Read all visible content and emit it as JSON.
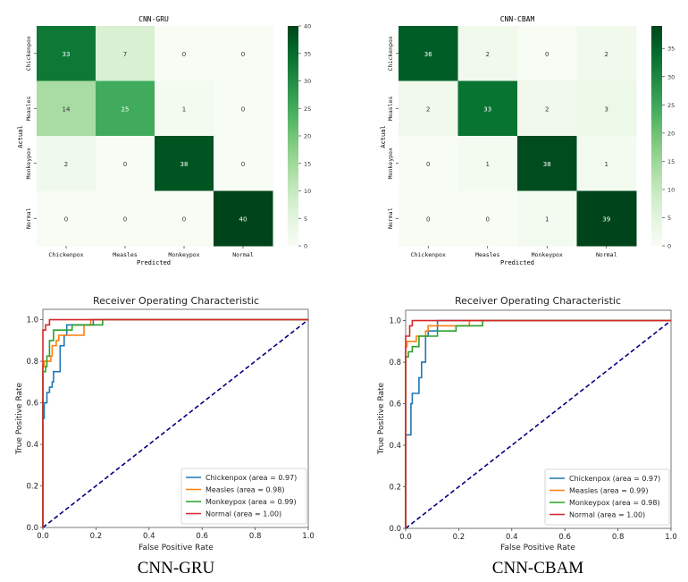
{
  "chart_data": [
    {
      "type": "heatmap",
      "id": "cm-gru",
      "title": "CNN-GRU",
      "xlabel": "Predicted",
      "ylabel": "Actual",
      "x_categories": [
        "Chickenpox",
        "Measles",
        "Monkeypox",
        "Normal"
      ],
      "y_categories": [
        "Chickenpox",
        "Measles",
        "Monkeypox",
        "Normal"
      ],
      "values": [
        [
          33,
          7,
          0,
          0
        ],
        [
          14,
          25,
          1,
          0
        ],
        [
          2,
          0,
          38,
          0
        ],
        [
          0,
          0,
          0,
          40
        ]
      ],
      "colormap": "Greens",
      "color_range": [
        0,
        40
      ],
      "colorbar_ticks": [
        0,
        5,
        10,
        15,
        20,
        25,
        30,
        35,
        40
      ]
    },
    {
      "type": "heatmap",
      "id": "cm-cbam",
      "title": "CNN-CBAM",
      "xlabel": "Predicted",
      "ylabel": "Actual",
      "x_categories": [
        "Chickenpox",
        "Measles",
        "Monkeypox",
        "Normal"
      ],
      "y_categories": [
        "Chickenpox",
        "Measles",
        "Monkeypox",
        "Normal"
      ],
      "values": [
        [
          36,
          2,
          0,
          2
        ],
        [
          2,
          33,
          2,
          3
        ],
        [
          0,
          1,
          38,
          1
        ],
        [
          0,
          0,
          1,
          39
        ]
      ],
      "colormap": "Greens",
      "color_range": [
        0,
        39
      ],
      "colorbar_ticks": [
        0,
        5,
        10,
        15,
        20,
        25,
        30,
        35
      ]
    },
    {
      "type": "line",
      "id": "roc-gru",
      "title": "Receiver Operating Characteristic",
      "caption": "CNN-GRU",
      "xlabel": "False Positive Rate",
      "ylabel": "True Positive Rate",
      "xlim": [
        0,
        1
      ],
      "ylim": [
        0,
        1.05
      ],
      "xticks": [
        "0.0",
        "0.2",
        "0.4",
        "0.6",
        "0.8",
        "1.0"
      ],
      "yticks": [
        "0.0",
        "0.2",
        "0.4",
        "0.6",
        "0.8",
        "1.0"
      ],
      "legend_position": "lower-right",
      "series": [
        {
          "name": "Chickenpox (area = 0.97)",
          "color": "#1f77b4",
          "points": [
            [
              0,
              0
            ],
            [
              0,
              0.525
            ],
            [
              0.005,
              0.525
            ],
            [
              0.005,
              0.6
            ],
            [
              0.015,
              0.6
            ],
            [
              0.015,
              0.65
            ],
            [
              0.025,
              0.65
            ],
            [
              0.025,
              0.675
            ],
            [
              0.035,
              0.675
            ],
            [
              0.035,
              0.7
            ],
            [
              0.04,
              0.7
            ],
            [
              0.04,
              0.75
            ],
            [
              0.065,
              0.75
            ],
            [
              0.065,
              0.875
            ],
            [
              0.08,
              0.875
            ],
            [
              0.08,
              0.925
            ],
            [
              0.09,
              0.925
            ],
            [
              0.09,
              0.975
            ],
            [
              0.19,
              0.975
            ],
            [
              0.19,
              1.0
            ],
            [
              1,
              1.0
            ]
          ]
        },
        {
          "name": "Measles (area = 0.98)",
          "color": "#ff7f0e",
          "points": [
            [
              0,
              0
            ],
            [
              0,
              0.775
            ],
            [
              0.005,
              0.775
            ],
            [
              0.005,
              0.8
            ],
            [
              0.03,
              0.8
            ],
            [
              0.03,
              0.825
            ],
            [
              0.035,
              0.825
            ],
            [
              0.035,
              0.875
            ],
            [
              0.05,
              0.875
            ],
            [
              0.05,
              0.9
            ],
            [
              0.06,
              0.9
            ],
            [
              0.06,
              0.925
            ],
            [
              0.155,
              0.925
            ],
            [
              0.155,
              0.975
            ],
            [
              0.18,
              0.975
            ],
            [
              0.18,
              1.0
            ],
            [
              1,
              1.0
            ]
          ]
        },
        {
          "name": "Monkeypox (area = 0.99)",
          "color": "#2ca02c",
          "points": [
            [
              0,
              0
            ],
            [
              0,
              0.75
            ],
            [
              0.01,
              0.75
            ],
            [
              0.01,
              0.775
            ],
            [
              0.015,
              0.775
            ],
            [
              0.015,
              0.825
            ],
            [
              0.025,
              0.825
            ],
            [
              0.025,
              0.9
            ],
            [
              0.04,
              0.9
            ],
            [
              0.04,
              0.95
            ],
            [
              0.11,
              0.95
            ],
            [
              0.11,
              0.975
            ],
            [
              0.225,
              0.975
            ],
            [
              0.225,
              1.0
            ],
            [
              1,
              1.0
            ]
          ]
        },
        {
          "name": "Normal (area = 1.00)",
          "color": "#d62728",
          "points": [
            [
              0,
              0
            ],
            [
              0,
              0.95
            ],
            [
              0.01,
              0.95
            ],
            [
              0.01,
              0.975
            ],
            [
              0.025,
              0.975
            ],
            [
              0.025,
              1.0
            ],
            [
              1,
              1.0
            ]
          ]
        }
      ],
      "reference_line": {
        "points": [
          [
            0,
            0
          ],
          [
            1,
            1
          ]
        ],
        "color": "#000080",
        "style": "dashed"
      }
    },
    {
      "type": "line",
      "id": "roc-cbam",
      "title": "Receiver Operating Characteristic",
      "caption": "CNN-CBAM",
      "xlabel": "False Positive Rate",
      "ylabel": "True Positive Rate",
      "xlim": [
        0,
        1
      ],
      "ylim": [
        0,
        1.05
      ],
      "xticks": [
        "0.0",
        "0.2",
        "0.4",
        "0.6",
        "0.8",
        "1.0"
      ],
      "yticks": [
        "0.0",
        "0.2",
        "0.4",
        "0.6",
        "0.8",
        "1.0"
      ],
      "legend_position": "lower-right",
      "series": [
        {
          "name": "Chickenpox (area = 0.97)",
          "color": "#1f77b4",
          "points": [
            [
              0,
              0
            ],
            [
              0,
              0.45
            ],
            [
              0.02,
              0.45
            ],
            [
              0.02,
              0.6
            ],
            [
              0.025,
              0.6
            ],
            [
              0.025,
              0.65
            ],
            [
              0.05,
              0.65
            ],
            [
              0.05,
              0.725
            ],
            [
              0.06,
              0.725
            ],
            [
              0.06,
              0.8
            ],
            [
              0.075,
              0.8
            ],
            [
              0.075,
              0.925
            ],
            [
              0.085,
              0.925
            ],
            [
              0.085,
              0.95
            ],
            [
              0.12,
              0.95
            ],
            [
              0.12,
              1.0
            ],
            [
              1,
              1.0
            ]
          ]
        },
        {
          "name": "Measles (area = 0.99)",
          "color": "#ff7f0e",
          "points": [
            [
              0,
              0
            ],
            [
              0,
              0.875
            ],
            [
              0.005,
              0.875
            ],
            [
              0.005,
              0.9
            ],
            [
              0.04,
              0.9
            ],
            [
              0.04,
              0.925
            ],
            [
              0.05,
              0.925
            ],
            [
              0.05,
              0.925
            ],
            [
              0.075,
              0.925
            ],
            [
              0.075,
              0.95
            ],
            [
              0.085,
              0.95
            ],
            [
              0.085,
              0.975
            ],
            [
              0.24,
              0.975
            ],
            [
              0.24,
              1.0
            ],
            [
              1,
              1.0
            ]
          ]
        },
        {
          "name": "Monkeypox (area = 0.98)",
          "color": "#2ca02c",
          "points": [
            [
              0,
              0
            ],
            [
              0,
              0.825
            ],
            [
              0.01,
              0.825
            ],
            [
              0.01,
              0.85
            ],
            [
              0.025,
              0.85
            ],
            [
              0.025,
              0.875
            ],
            [
              0.05,
              0.875
            ],
            [
              0.05,
              0.925
            ],
            [
              0.12,
              0.925
            ],
            [
              0.12,
              0.95
            ],
            [
              0.19,
              0.95
            ],
            [
              0.19,
              0.975
            ],
            [
              0.29,
              0.975
            ],
            [
              0.29,
              1.0
            ],
            [
              1,
              1.0
            ]
          ]
        },
        {
          "name": "Normal (area = 1.00)",
          "color": "#d62728",
          "points": [
            [
              0,
              0
            ],
            [
              0,
              0.925
            ],
            [
              0.015,
              0.925
            ],
            [
              0.015,
              0.975
            ],
            [
              0.025,
              0.975
            ],
            [
              0.025,
              1.0
            ],
            [
              1,
              1.0
            ]
          ]
        }
      ],
      "reference_line": {
        "points": [
          [
            0,
            0
          ],
          [
            1,
            1
          ]
        ],
        "color": "#000080",
        "style": "dashed"
      }
    }
  ]
}
